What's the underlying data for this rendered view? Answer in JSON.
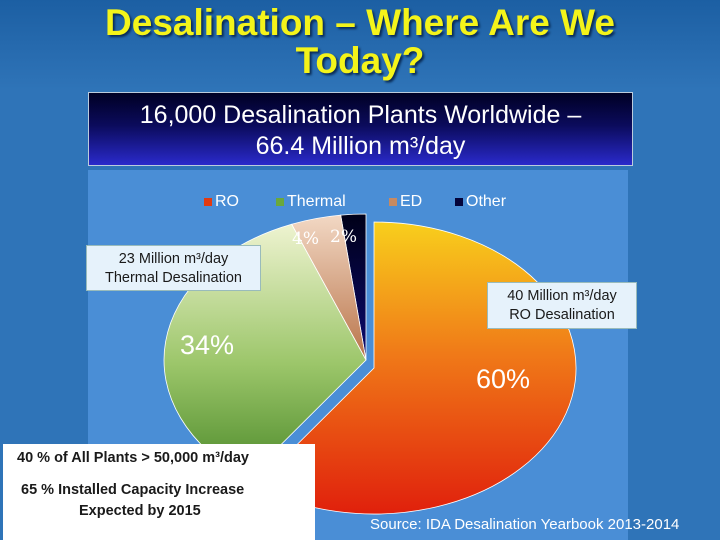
{
  "slide": {
    "title_line1": "Desalination – Where Are We",
    "title_line2": "Today?",
    "subtitle_line1": "16,000 Desalination Plants Worldwide –",
    "subtitle_line2": "66.4 Million m³/day"
  },
  "callouts": {
    "thermal_line1": "23 Million m³/day",
    "thermal_line2": "Thermal Desalination",
    "ro_line1": "40 Million m³/day",
    "ro_line2": "RO Desalination"
  },
  "notes": {
    "line1": "40 % of All Plants > 50,000 m³/day",
    "line2": "65 % Installed Capacity Increase",
    "line3": "Expected  by 2015"
  },
  "source": "Source: IDA Desalination Yearbook 2013-2014",
  "colors": {
    "title": "#f4f41a",
    "ro": "#e23a10",
    "thermal": "#6aa83c",
    "ed": "#c78a62",
    "other": "#04043a"
  },
  "chart_data": {
    "type": "pie",
    "categories": [
      "RO",
      "Thermal",
      "ED",
      "Other"
    ],
    "values": [
      60,
      34,
      4,
      2
    ],
    "data_labels": [
      "60%",
      "34%",
      "4%",
      "2%"
    ],
    "legend_position": "top"
  }
}
